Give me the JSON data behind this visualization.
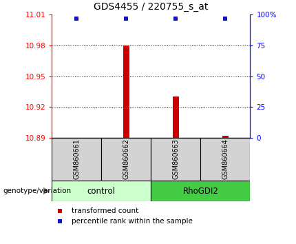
{
  "title": "GDS4455 / 220755_s_at",
  "samples": [
    "GSM860661",
    "GSM860662",
    "GSM860663",
    "GSM860664"
  ],
  "groups": [
    "control",
    "control",
    "RhoGDI2",
    "RhoGDI2"
  ],
  "transformed_counts": [
    10.89,
    10.98,
    10.93,
    10.892
  ],
  "percentile_ranks": [
    100,
    100,
    100,
    100
  ],
  "ylim_left": [
    10.89,
    11.01
  ],
  "yticks_left": [
    10.89,
    10.92,
    10.95,
    10.98,
    11.01
  ],
  "yticks_right": [
    0,
    25,
    50,
    75,
    100
  ],
  "bar_color": "#cc0000",
  "percentile_color": "#1111cc",
  "bar_baseline": 10.89,
  "group_colors_control": "#ccffcc",
  "group_colors_RhoGDI2": "#44cc44",
  "sample_box_color": "#d3d3d3",
  "legend_red_label": "transformed count",
  "legend_blue_label": "percentile rank within the sample",
  "xlabel_left": "genotype/variation",
  "grid_yticks": [
    10.92,
    10.95,
    10.98
  ],
  "bar_width": 0.12
}
